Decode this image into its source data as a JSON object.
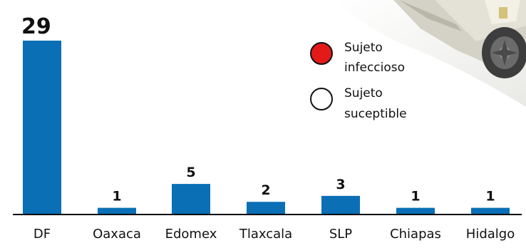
{
  "chart_data": {
    "type": "bar",
    "categories": [
      "DF",
      "Oaxaca",
      "Edomex",
      "Tlaxcala",
      "SLP",
      "Chiapas",
      "Hidalgo"
    ],
    "values": [
      29,
      1,
      5,
      2,
      3,
      1,
      1
    ],
    "data_labels": [
      "29",
      "1",
      "5",
      "2",
      "3",
      "1",
      "1"
    ],
    "ylim": [
      0,
      29
    ],
    "grid": false,
    "bar_color": "#0a6fb5",
    "legend": {
      "placement": "top-right",
      "items": [
        {
          "label_line1": "Sujeto",
          "label_line2": "infeccioso",
          "symbol": "filled-circle",
          "color": "#e21a1a"
        },
        {
          "label_line1": "Sujeto",
          "label_line2": "suceptible",
          "symbol": "empty-circle",
          "color": "#ffffff"
        }
      ]
    }
  },
  "decoration": {
    "illustration": "truck-icon"
  }
}
